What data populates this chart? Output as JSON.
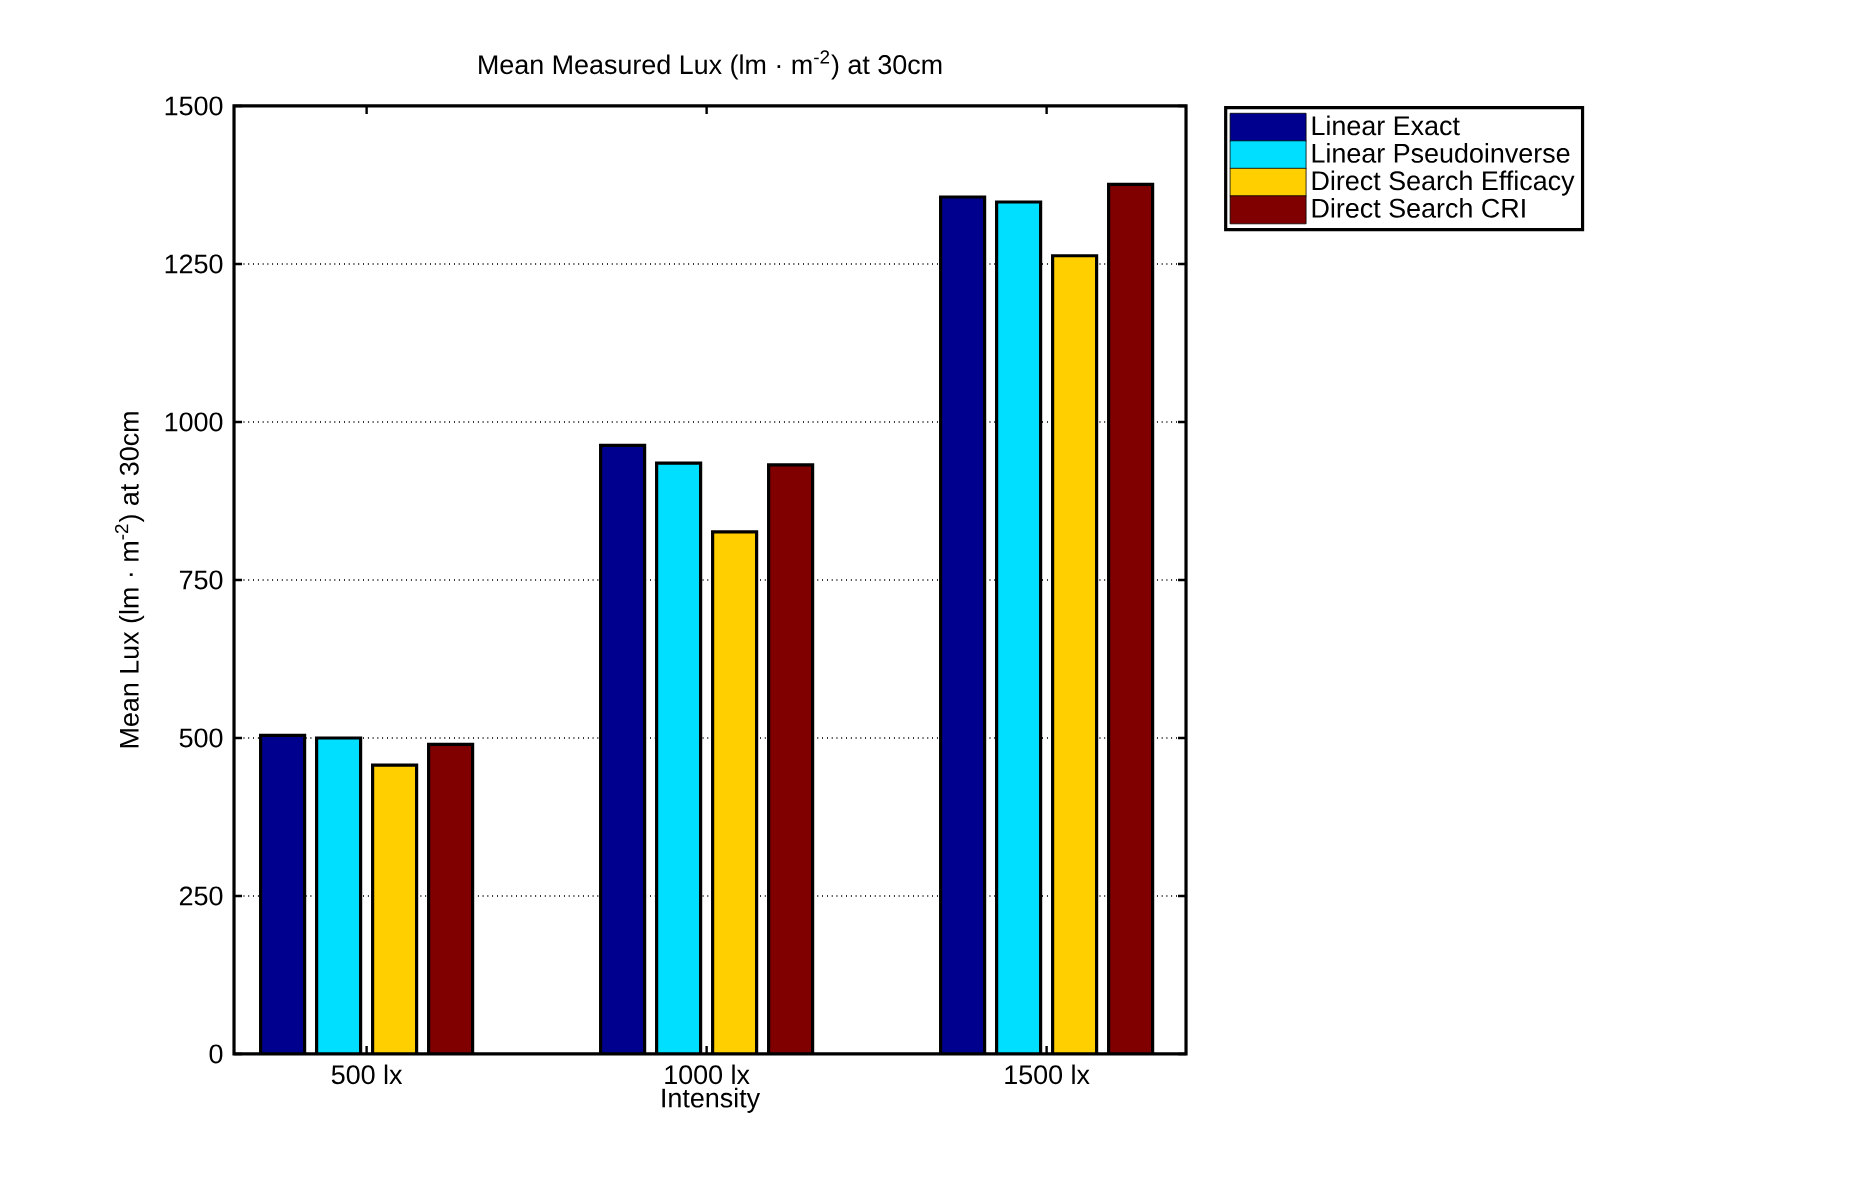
{
  "chart_data": {
    "type": "bar",
    "title": "Mean Measured Lux (lm · m$^{-2}$) at 30cm",
    "xlabel": "Intensity",
    "ylabel": "Mean Lux (lm · m$^{-2}$) at 30cm",
    "categories": [
      "500 lx",
      "1000 lx",
      "1500 lx"
    ],
    "series": [
      {
        "name": "Linear Exact",
        "color": "#00008f",
        "values": [
          504,
          963,
          1356
        ]
      },
      {
        "name": "Linear Pseudoinverse",
        "color": "#00dfff",
        "values": [
          500,
          935,
          1348
        ]
      },
      {
        "name": "Direct Search Efficacy",
        "color": "#ffcf00",
        "values": [
          457,
          826,
          1263
        ]
      },
      {
        "name": "Direct Search CRI",
        "color": "#800000",
        "values": [
          490,
          932,
          1376
        ]
      }
    ],
    "ylim": [
      0,
      1500
    ],
    "yticks": [
      0,
      250,
      500,
      750,
      1000,
      1250,
      1500
    ],
    "grid": "y",
    "legend": "top right"
  }
}
